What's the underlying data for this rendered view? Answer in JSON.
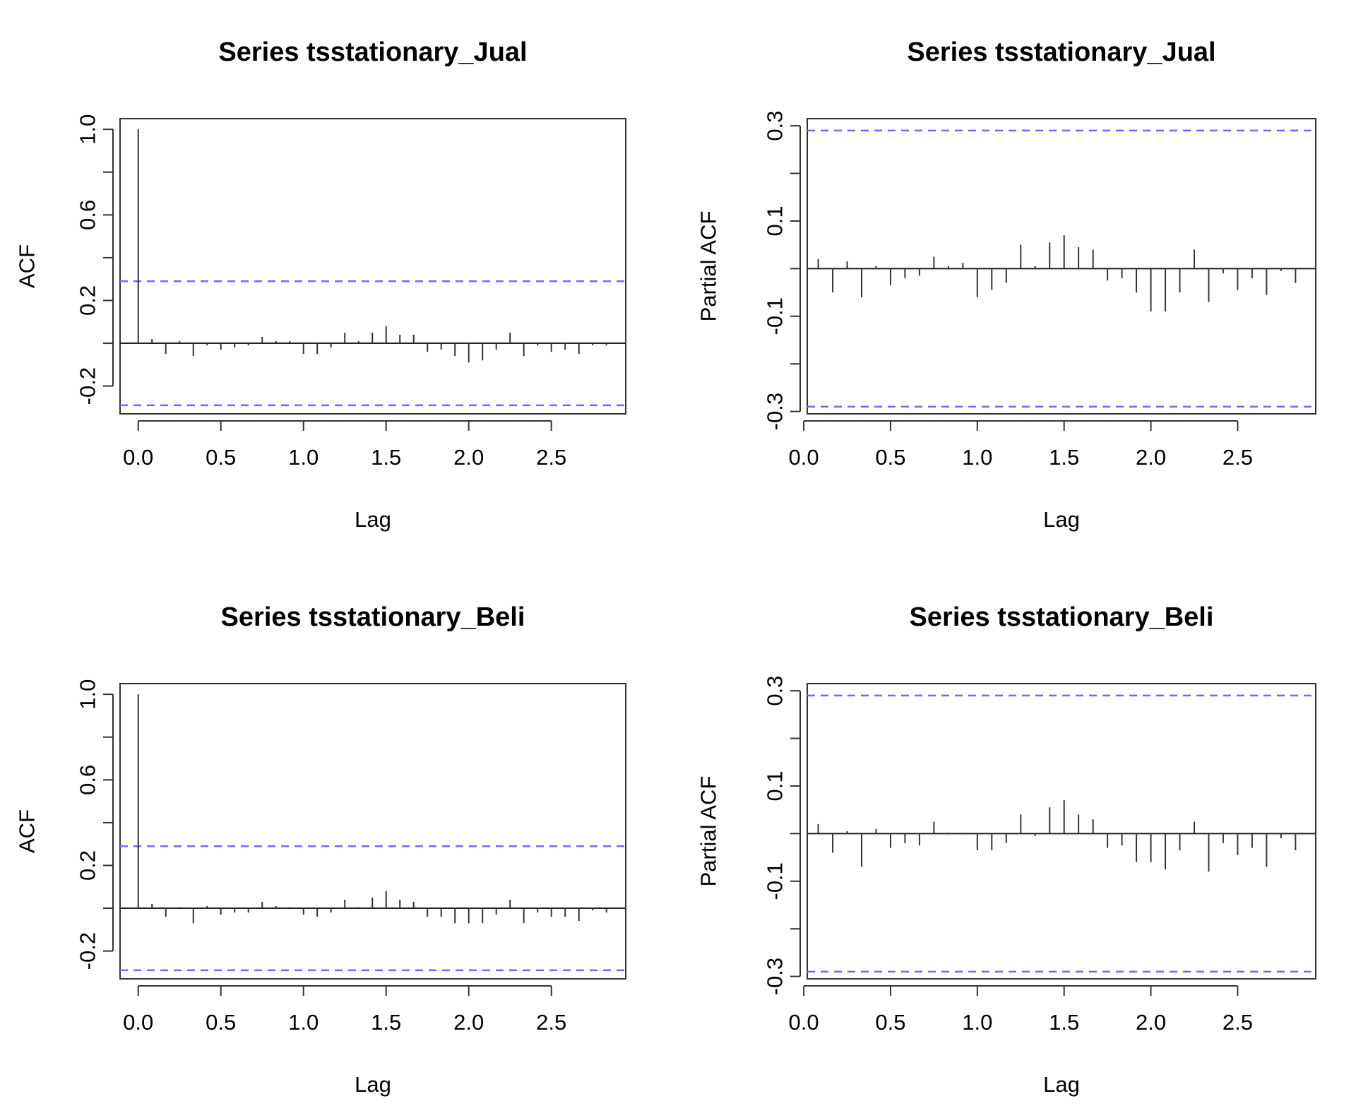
{
  "chart_data": [
    {
      "type": "bar",
      "title": "Series  tsstationary_Jual",
      "xlabel": "Lag",
      "ylabel": "ACF",
      "xlim": [
        -0.11,
        2.95
      ],
      "ylim": [
        -0.33,
        1.05
      ],
      "xticks": [
        "0.0",
        "0.5",
        "1.0",
        "1.5",
        "2.0",
        "2.5"
      ],
      "yticks": [
        "-0.2",
        "0.2",
        "0.6",
        "1.0"
      ],
      "conf_limit": 0.29,
      "x": [
        0,
        0.0833,
        0.1667,
        0.25,
        0.3333,
        0.4167,
        0.5,
        0.5833,
        0.6667,
        0.75,
        0.8333,
        0.9167,
        1.0,
        1.0833,
        1.1667,
        1.25,
        1.3333,
        1.4167,
        1.5,
        1.5833,
        1.6667,
        1.75,
        1.8333,
        1.9167,
        2.0,
        2.0833,
        2.1667,
        2.25,
        2.3333,
        2.4167,
        2.5,
        2.5833,
        2.6667,
        2.75,
        2.8333
      ],
      "values": [
        1.0,
        0.02,
        -0.05,
        0.01,
        -0.06,
        -0.01,
        -0.03,
        -0.02,
        -0.01,
        0.03,
        0.01,
        0.01,
        -0.05,
        -0.05,
        -0.02,
        0.05,
        0.01,
        0.05,
        0.08,
        0.04,
        0.04,
        -0.04,
        -0.03,
        -0.06,
        -0.09,
        -0.08,
        -0.03,
        0.05,
        -0.06,
        -0.01,
        -0.04,
        -0.03,
        -0.05,
        -0.01,
        -0.01
      ]
    },
    {
      "type": "bar",
      "title": "Series  tsstationary_Jual",
      "xlabel": "Lag",
      "ylabel": "Partial ACF",
      "xlim": [
        0.02,
        2.95
      ],
      "ylim": [
        -0.305,
        0.315
      ],
      "xticks": [
        "0.0",
        "0.5",
        "1.0",
        "1.5",
        "2.0",
        "2.5"
      ],
      "yticks": [
        "-0.3",
        "-0.1",
        "0.1",
        "0.3"
      ],
      "conf_limit": 0.29,
      "x": [
        0.0833,
        0.1667,
        0.25,
        0.3333,
        0.4167,
        0.5,
        0.5833,
        0.6667,
        0.75,
        0.8333,
        0.9167,
        1.0,
        1.0833,
        1.1667,
        1.25,
        1.3333,
        1.4167,
        1.5,
        1.5833,
        1.6667,
        1.75,
        1.8333,
        1.9167,
        2.0,
        2.0833,
        2.1667,
        2.25,
        2.3333,
        2.4167,
        2.5,
        2.5833,
        2.6667,
        2.75,
        2.8333
      ],
      "values": [
        0.02,
        -0.05,
        0.015,
        -0.06,
        0.005,
        -0.035,
        -0.02,
        -0.015,
        0.025,
        0.005,
        0.012,
        -0.06,
        -0.045,
        -0.03,
        0.05,
        0.005,
        0.055,
        0.07,
        0.045,
        0.04,
        -0.025,
        -0.02,
        -0.05,
        -0.09,
        -0.09,
        -0.05,
        0.04,
        -0.07,
        -0.01,
        -0.045,
        -0.02,
        -0.055,
        -0.005,
        -0.03
      ]
    },
    {
      "type": "bar",
      "title": "Series  tsstationary_Beli",
      "xlabel": "Lag",
      "ylabel": "ACF",
      "xlim": [
        -0.11,
        2.95
      ],
      "ylim": [
        -0.33,
        1.05
      ],
      "xticks": [
        "0.0",
        "0.5",
        "1.0",
        "1.5",
        "2.0",
        "2.5"
      ],
      "yticks": [
        "-0.2",
        "0.2",
        "0.6",
        "1.0"
      ],
      "conf_limit": 0.29,
      "x": [
        0,
        0.0833,
        0.1667,
        0.25,
        0.3333,
        0.4167,
        0.5,
        0.5833,
        0.6667,
        0.75,
        0.8333,
        0.9167,
        1.0,
        1.0833,
        1.1667,
        1.25,
        1.3333,
        1.4167,
        1.5,
        1.5833,
        1.6667,
        1.75,
        1.8333,
        1.9167,
        2.0,
        2.0833,
        2.1667,
        2.25,
        2.3333,
        2.4167,
        2.5,
        2.5833,
        2.6667,
        2.75,
        2.8333
      ],
      "values": [
        1.0,
        0.02,
        -0.04,
        0.005,
        -0.07,
        0.01,
        -0.03,
        -0.02,
        -0.02,
        0.03,
        0.01,
        0.005,
        -0.03,
        -0.04,
        -0.02,
        0.04,
        0.005,
        0.05,
        0.08,
        0.04,
        0.03,
        -0.04,
        -0.04,
        -0.07,
        -0.07,
        -0.07,
        -0.03,
        0.04,
        -0.07,
        -0.02,
        -0.04,
        -0.04,
        -0.06,
        -0.01,
        -0.02
      ]
    },
    {
      "type": "bar",
      "title": "Series  tsstationary_Beli",
      "xlabel": "Lag",
      "ylabel": "Partial ACF",
      "xlim": [
        0.02,
        2.95
      ],
      "ylim": [
        -0.305,
        0.315
      ],
      "xticks": [
        "0.0",
        "0.5",
        "1.0",
        "1.5",
        "2.0",
        "2.5"
      ],
      "yticks": [
        "-0.3",
        "-0.1",
        "0.1",
        "0.3"
      ],
      "conf_limit": 0.29,
      "x": [
        0.0833,
        0.1667,
        0.25,
        0.3333,
        0.4167,
        0.5,
        0.5833,
        0.6667,
        0.75,
        0.8333,
        0.9167,
        1.0,
        1.0833,
        1.1667,
        1.25,
        1.3333,
        1.4167,
        1.5,
        1.5833,
        1.6667,
        1.75,
        1.8333,
        1.9167,
        2.0,
        2.0833,
        2.1667,
        2.25,
        2.3333,
        2.4167,
        2.5,
        2.5833,
        2.6667,
        2.75,
        2.8333
      ],
      "values": [
        0.02,
        -0.04,
        0.005,
        -0.07,
        0.01,
        -0.03,
        -0.02,
        -0.025,
        0.025,
        0.002,
        0.002,
        -0.035,
        -0.035,
        -0.02,
        0.04,
        -0.005,
        0.055,
        0.07,
        0.04,
        0.03,
        -0.03,
        -0.025,
        -0.06,
        -0.06,
        -0.075,
        -0.035,
        0.025,
        -0.08,
        -0.02,
        -0.045,
        -0.03,
        -0.07,
        -0.01,
        -0.035
      ]
    }
  ]
}
